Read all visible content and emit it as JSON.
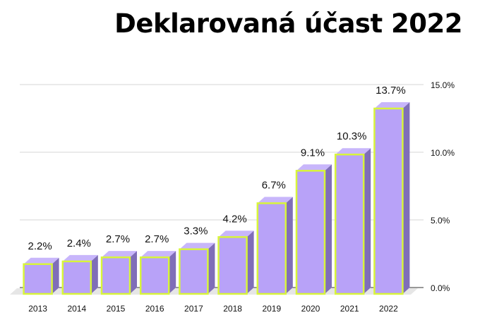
{
  "chart_data": {
    "type": "bar",
    "title": "Deklarovaná účast 2022",
    "xlabel": "",
    "ylabel": "",
    "categories": [
      "2013",
      "2014",
      "2015",
      "2016",
      "2017",
      "2018",
      "2019",
      "2020",
      "2021",
      "2022"
    ],
    "values": [
      2.2,
      2.4,
      2.7,
      2.7,
      3.3,
      4.2,
      6.7,
      9.1,
      10.3,
      13.7
    ],
    "value_labels": [
      "2.2%",
      "2.4%",
      "2.7%",
      "2.7%",
      "3.3%",
      "4.2%",
      "6.7%",
      "9.1%",
      "10.3%",
      "13.7%"
    ],
    "ylim": [
      0,
      15
    ],
    "yticks": [
      0,
      5,
      10,
      15
    ],
    "ytick_labels": [
      "0.0%",
      "5.0%",
      "10.0%",
      "15.0%"
    ],
    "y_axis_side": "right",
    "grid": true,
    "style": "3d",
    "colors": {
      "bar_front": "#b8a2f8",
      "bar_top": "#c8b6fb",
      "bar_side": "#7f6eb8",
      "bar_border": "#d8f53a",
      "grid": "#d6d6d6",
      "floor": "#e6e6e6"
    }
  }
}
